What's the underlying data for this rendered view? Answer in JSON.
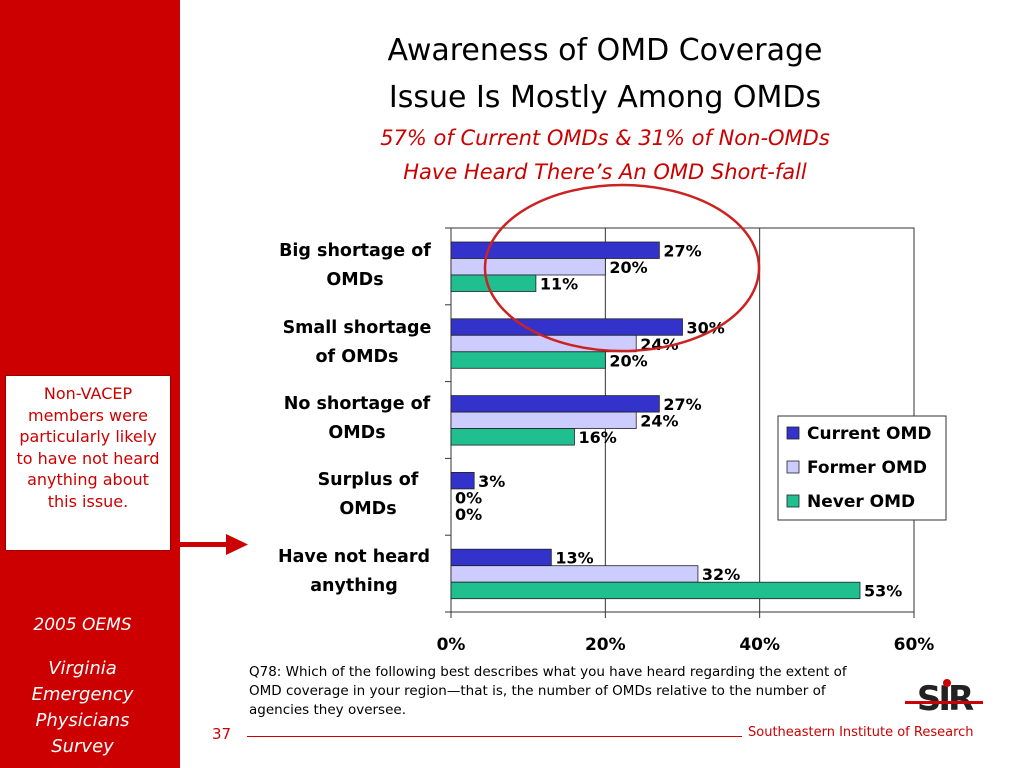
{
  "slide": {
    "title_line1": "Awareness of OMD Coverage",
    "title_line2": "Issue Is Mostly Among OMDs",
    "subtitle_line1": "57% of Current OMDs & 31% of Non-OMDs",
    "subtitle_line2": "Have Heard There’s An OMD Short-fall",
    "note": "Non-VACEP members were particularly likely to have not heard anything about this issue.",
    "survey_year": "2005 OEMS",
    "survey_name_lines": [
      "Virginia",
      "Emergency",
      "Physicians",
      "Survey"
    ],
    "question": "Q78: Which of the following best describes what you have heard regarding the extent of OMD coverage in your region—that is, the number of OMDs relative to the number of agencies they oversee.",
    "page_number": "37",
    "organization": "Southeastern Institute of Research",
    "logo_text": "SIR"
  },
  "colors": {
    "brand_red": "#cc0000",
    "current_omd": "#3333cc",
    "former_omd": "#ccccff",
    "never_omd": "#1fbf8f",
    "highlight_circle": "#cc2222"
  },
  "chart_data": {
    "type": "bar",
    "orientation": "horizontal",
    "categories": [
      [
        "Big shortage of",
        "OMDs"
      ],
      [
        "Small shortage",
        "of OMDs"
      ],
      [
        "No shortage of",
        "OMDs"
      ],
      [
        "Surplus of",
        "OMDs"
      ],
      [
        "Have not heard",
        "anything"
      ]
    ],
    "series": [
      {
        "name": "Current OMD",
        "values": [
          27,
          30,
          27,
          3,
          13
        ],
        "labels": [
          "27%",
          "30%",
          "27%",
          "3%",
          "13%"
        ]
      },
      {
        "name": "Former OMD",
        "values": [
          20,
          24,
          24,
          0,
          32
        ],
        "labels": [
          "20%",
          "24%",
          "24%",
          "0%",
          "32%"
        ]
      },
      {
        "name": "Never OMD",
        "values": [
          11,
          20,
          16,
          0,
          53
        ],
        "labels": [
          "11%",
          "20%",
          "16%",
          "0%",
          "53%"
        ]
      }
    ],
    "xlim": [
      0,
      60
    ],
    "xticks": [
      "0%",
      "20%",
      "40%",
      "60%"
    ],
    "grid": true,
    "legend": "right",
    "annotation": "circle around the Big shortage of OMDs bars"
  }
}
